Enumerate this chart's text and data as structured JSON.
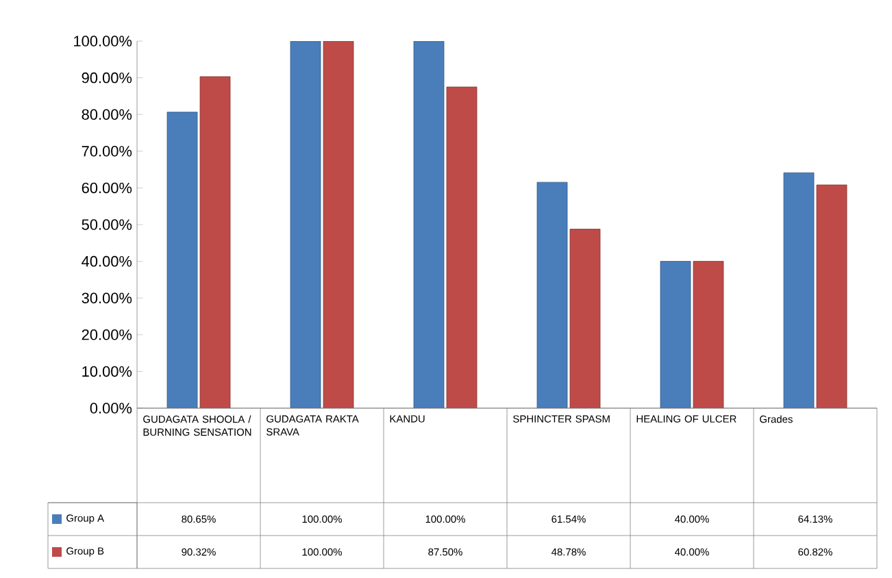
{
  "chart_data": {
    "type": "bar",
    "categories": [
      "GUDAGATA SHOOLA / BURNING SENSATION",
      "GUDAGATA RAKTA SRAVA",
      "KANDU",
      "SPHINCTER SPASM",
      "HEALING OF ULCER",
      "Grades"
    ],
    "series": [
      {
        "name": "Group A",
        "color": "#4a7ebb",
        "values": [
          80.65,
          100,
          100,
          61.54,
          40,
          64.13
        ],
        "value_labels": [
          "80.65%",
          "100.00%",
          "100.00%",
          "61.54%",
          "40.00%",
          "64.13%"
        ]
      },
      {
        "name": "Group B",
        "color": "#be4b48",
        "values": [
          90.32,
          100,
          87.5,
          48.78,
          40,
          60.82
        ],
        "value_labels": [
          "90.32%",
          "100.00%",
          "87.50%",
          "48.78%",
          "40.00%",
          "60.82%"
        ]
      }
    ],
    "ylim": [
      0,
      100
    ],
    "yticks": [
      {
        "value": 0,
        "label": "0.00%"
      },
      {
        "value": 10,
        "label": "10.00%"
      },
      {
        "value": 20,
        "label": "20.00%"
      },
      {
        "value": 30,
        "label": "30.00%"
      },
      {
        "value": 40,
        "label": "40.00%"
      },
      {
        "value": 50,
        "label": "50.00%"
      },
      {
        "value": 60,
        "label": "60.00%"
      },
      {
        "value": 70,
        "label": "70.00%"
      },
      {
        "value": 80,
        "label": "80.00%"
      },
      {
        "value": 90,
        "label": "90.00%"
      },
      {
        "value": 100,
        "label": "100.00%"
      }
    ],
    "legend": "bottom left"
  }
}
